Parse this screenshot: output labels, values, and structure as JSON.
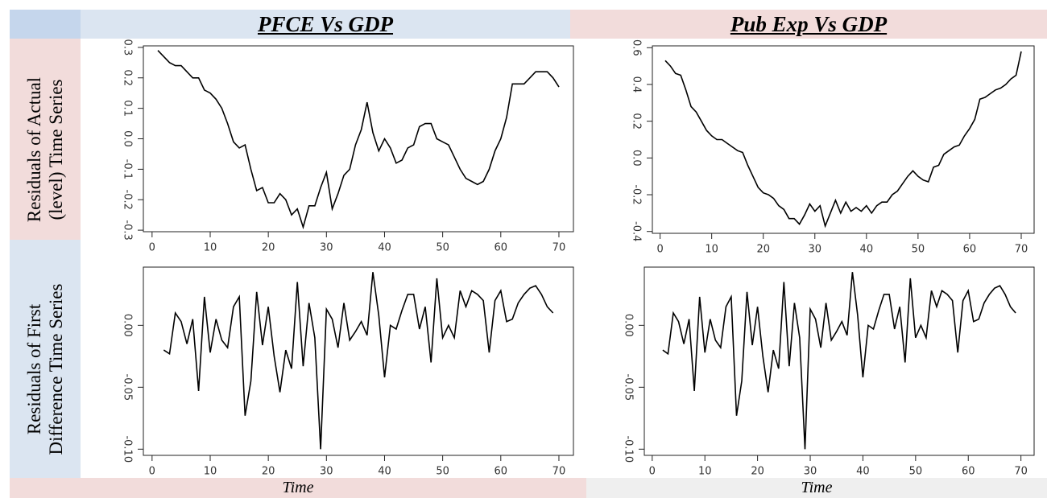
{
  "column_titles": [
    "PFCE Vs GDP",
    "Pub Exp Vs GDP"
  ],
  "row_titles": [
    "Residuals of Actual (level) Time Series",
    "Residuals of First Difference Time Series"
  ],
  "x_labels": [
    "Time",
    "Time"
  ],
  "chart_data": [
    {
      "type": "line",
      "color": "#000000",
      "x": [
        1,
        2,
        3,
        4,
        5,
        6,
        7,
        8,
        9,
        10,
        11,
        12,
        13,
        14,
        15,
        16,
        17,
        18,
        19,
        20,
        21,
        22,
        23,
        24,
        25,
        26,
        27,
        28,
        29,
        30,
        31,
        32,
        33,
        34,
        35,
        36,
        37,
        38,
        39,
        40,
        41,
        42,
        43,
        44,
        45,
        46,
        47,
        48,
        49,
        50,
        51,
        52,
        53,
        54,
        55,
        56,
        57,
        58,
        59,
        60,
        61,
        62,
        63,
        64,
        65,
        66,
        67,
        68,
        69,
        70
      ],
      "values": [
        0.29,
        0.27,
        0.25,
        0.24,
        0.24,
        0.22,
        0.2,
        0.2,
        0.16,
        0.15,
        0.13,
        0.1,
        0.05,
        -0.01,
        -0.03,
        -0.02,
        -0.1,
        -0.17,
        -0.16,
        -0.21,
        -0.21,
        -0.18,
        -0.2,
        -0.25,
        -0.23,
        -0.29,
        -0.22,
        -0.22,
        -0.16,
        -0.11,
        -0.23,
        -0.18,
        -0.12,
        -0.1,
        -0.02,
        0.03,
        0.12,
        0.02,
        -0.04,
        0.0,
        -0.03,
        -0.08,
        -0.07,
        -0.03,
        -0.02,
        0.04,
        0.05,
        0.05,
        0.0,
        -0.01,
        -0.02,
        -0.06,
        -0.1,
        -0.13,
        -0.14,
        -0.15,
        -0.14,
        -0.1,
        -0.04,
        0.0,
        0.07,
        0.18,
        0.18,
        0.18,
        0.2,
        0.22,
        0.22,
        0.22,
        0.2,
        0.17
      ],
      "xlim": [
        -1.5,
        72.5
      ],
      "xticks": [
        0,
        10,
        20,
        30,
        40,
        50,
        60,
        70
      ],
      "ylim": [
        -0.305,
        0.305
      ],
      "yticks": [
        -0.3,
        -0.2,
        -0.1,
        {
          "value": 0,
          "label": "0.0"
        },
        0.1,
        0.2,
        0.3
      ]
    },
    {
      "type": "line",
      "color": "#000000",
      "x": [
        1,
        2,
        3,
        4,
        5,
        6,
        7,
        8,
        9,
        10,
        11,
        12,
        13,
        14,
        15,
        16,
        17,
        18,
        19,
        20,
        21,
        22,
        23,
        24,
        25,
        26,
        27,
        28,
        29,
        30,
        31,
        32,
        33,
        34,
        35,
        36,
        37,
        38,
        39,
        40,
        41,
        42,
        43,
        44,
        45,
        46,
        47,
        48,
        49,
        50,
        51,
        52,
        53,
        54,
        55,
        56,
        57,
        58,
        59,
        60,
        61,
        62,
        63,
        64,
        65,
        66,
        67,
        68,
        69,
        70
      ],
      "values": [
        0.53,
        0.5,
        0.46,
        0.45,
        0.37,
        0.28,
        0.25,
        0.2,
        0.15,
        0.12,
        0.1,
        0.1,
        0.08,
        0.06,
        0.04,
        0.03,
        -0.04,
        -0.1,
        -0.16,
        -0.19,
        -0.2,
        -0.22,
        -0.26,
        -0.28,
        -0.33,
        -0.33,
        -0.36,
        -0.31,
        -0.25,
        -0.29,
        -0.26,
        -0.37,
        -0.3,
        -0.23,
        -0.3,
        -0.24,
        -0.29,
        -0.27,
        -0.29,
        -0.26,
        -0.3,
        -0.26,
        -0.24,
        -0.24,
        -0.2,
        -0.18,
        -0.14,
        -0.1,
        -0.07,
        -0.1,
        -0.12,
        -0.13,
        -0.05,
        -0.04,
        0.02,
        0.04,
        0.06,
        0.07,
        0.12,
        0.16,
        0.21,
        0.32,
        0.33,
        0.35,
        0.37,
        0.38,
        0.4,
        0.43,
        0.45,
        0.58
      ],
      "xlim": [
        -1.5,
        72.5
      ],
      "xticks": [
        0,
        10,
        20,
        30,
        40,
        50,
        60,
        70
      ],
      "ylim": [
        -0.41,
        0.61
      ],
      "yticks": [
        -0.4,
        -0.2,
        {
          "value": 0,
          "label": "0.0"
        },
        0.2,
        0.4,
        0.6
      ]
    },
    {
      "type": "line",
      "color": "#000000",
      "x": [
        2,
        3,
        4,
        5,
        6,
        7,
        8,
        9,
        10,
        11,
        12,
        13,
        14,
        15,
        16,
        17,
        18,
        19,
        20,
        21,
        22,
        23,
        24,
        25,
        26,
        27,
        28,
        29,
        30,
        31,
        32,
        33,
        34,
        35,
        36,
        37,
        38,
        39,
        40,
        41,
        42,
        43,
        44,
        45,
        46,
        47,
        48,
        49,
        50,
        51,
        52,
        53,
        54,
        55,
        56,
        57,
        58,
        59,
        60,
        61,
        62,
        63,
        64,
        65,
        66,
        67,
        68,
        69
      ],
      "values": [
        -0.02,
        -0.023,
        0.01,
        0.003,
        -0.015,
        0.005,
        -0.053,
        0.023,
        -0.022,
        0.005,
        -0.012,
        -0.018,
        0.015,
        0.023,
        -0.073,
        -0.045,
        0.027,
        -0.016,
        0.015,
        -0.025,
        -0.054,
        -0.02,
        -0.035,
        0.035,
        -0.033,
        0.018,
        -0.01,
        -0.1,
        0.013,
        0.005,
        -0.018,
        0.018,
        -0.012,
        -0.005,
        0.003,
        -0.008,
        0.043,
        0.008,
        -0.042,
        0.0,
        -0.003,
        0.012,
        0.025,
        0.025,
        -0.003,
        0.015,
        -0.03,
        0.038,
        -0.01,
        0.0,
        -0.01,
        0.028,
        0.015,
        0.028,
        0.025,
        0.02,
        -0.022,
        0.02,
        0.028,
        0.003,
        0.005,
        0.018,
        0.025,
        0.03,
        0.032,
        0.025,
        0.015,
        0.01
      ],
      "xlim": [
        -1.5,
        72.5
      ],
      "xticks": [
        0,
        10,
        20,
        30,
        40,
        50,
        60,
        70
      ],
      "ylim": [
        -0.105,
        0.047
      ],
      "yticks": [
        {
          "value": -0.1,
          "label": "-0.10"
        },
        {
          "value": -0.05,
          "label": "-0.05"
        },
        {
          "value": 0,
          "label": "0.00"
        }
      ]
    },
    {
      "type": "line",
      "color": "#000000",
      "x": [
        2,
        3,
        4,
        5,
        6,
        7,
        8,
        9,
        10,
        11,
        12,
        13,
        14,
        15,
        16,
        17,
        18,
        19,
        20,
        21,
        22,
        23,
        24,
        25,
        26,
        27,
        28,
        29,
        30,
        31,
        32,
        33,
        34,
        35,
        36,
        37,
        38,
        39,
        40,
        41,
        42,
        43,
        44,
        45,
        46,
        47,
        48,
        49,
        50,
        51,
        52,
        53,
        54,
        55,
        56,
        57,
        58,
        59,
        60,
        61,
        62,
        63,
        64,
        65,
        66,
        67,
        68,
        69
      ],
      "values": [
        -0.02,
        -0.023,
        0.01,
        0.003,
        -0.015,
        0.005,
        -0.053,
        0.023,
        -0.022,
        0.005,
        -0.012,
        -0.018,
        0.015,
        0.023,
        -0.073,
        -0.045,
        0.027,
        -0.016,
        0.015,
        -0.025,
        -0.054,
        -0.02,
        -0.035,
        0.035,
        -0.033,
        0.018,
        -0.01,
        -0.1,
        0.013,
        0.005,
        -0.018,
        0.018,
        -0.012,
        -0.005,
        0.003,
        -0.008,
        0.043,
        0.008,
        -0.042,
        0.0,
        -0.003,
        0.012,
        0.025,
        0.025,
        -0.003,
        0.015,
        -0.03,
        0.038,
        -0.01,
        0.0,
        -0.01,
        0.028,
        0.015,
        0.028,
        0.025,
        0.02,
        -0.022,
        0.02,
        0.028,
        0.003,
        0.005,
        0.018,
        0.025,
        0.03,
        0.032,
        0.025,
        0.015,
        0.01
      ],
      "xlim": [
        -1.5,
        72.5
      ],
      "xticks": [
        0,
        10,
        20,
        30,
        40,
        50,
        60,
        70
      ],
      "ylim": [
        -0.105,
        0.047
      ],
      "yticks": [
        {
          "value": -0.1,
          "label": "-0.10"
        },
        {
          "value": -0.05,
          "label": "-0.05"
        },
        {
          "value": 0,
          "label": "0.00"
        }
      ]
    }
  ]
}
